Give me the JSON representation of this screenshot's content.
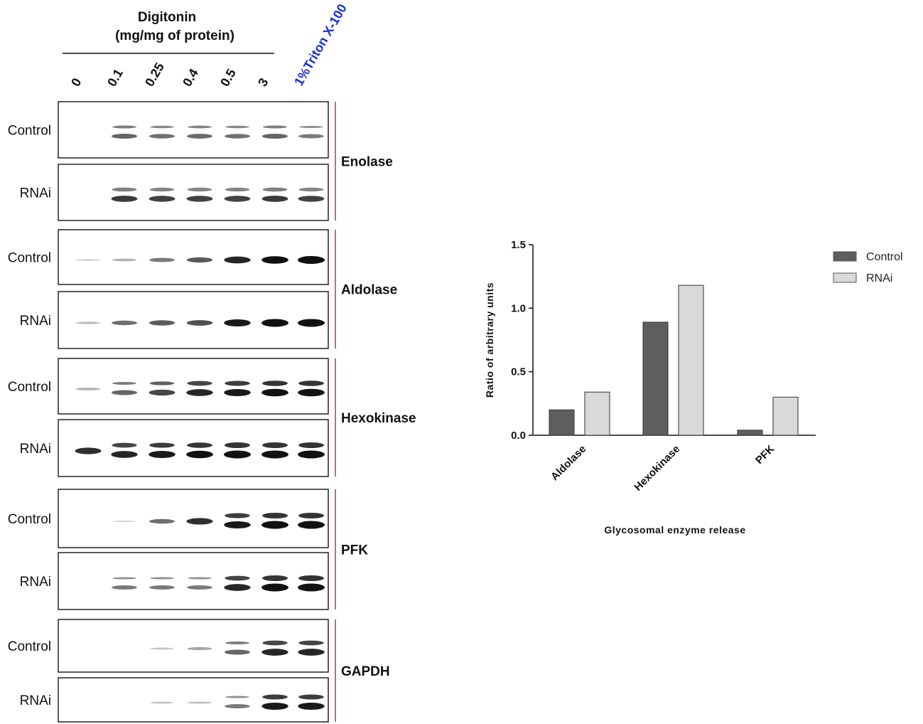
{
  "blot": {
    "header_line1": "Digitonin",
    "header_line2": "(mg/mg of protein)",
    "lanes": [
      "0",
      "0.1",
      "0.25",
      "0.4",
      "0.5",
      "3",
      "1%Triton X-100"
    ],
    "colors": {
      "triton_label": "#1a2fcf",
      "divider": "#c0392b",
      "band": "#111111"
    },
    "groups": [
      {
        "protein": "Enolase",
        "rows": [
          {
            "label": "Control",
            "intensity": [
              0,
              0.55,
              0.5,
              0.52,
              0.5,
              0.55,
              0.45
            ],
            "doublet": [
              0,
              1,
              1,
              1,
              1,
              1,
              1
            ]
          },
          {
            "label": "RNAi",
            "intensity": [
              0,
              0.75,
              0.72,
              0.72,
              0.72,
              0.75,
              0.72
            ],
            "doublet": [
              0,
              0.5,
              0.5,
              0.5,
              0.5,
              0.5,
              0.5
            ]
          }
        ]
      },
      {
        "protein": "Aldolase",
        "rows": [
          {
            "label": "Control",
            "intensity": [
              0.05,
              0.2,
              0.45,
              0.6,
              0.85,
              0.95,
              1.0
            ],
            "doublet": [
              0,
              0,
              0,
              0,
              0,
              0,
              0
            ]
          },
          {
            "label": "RNAi",
            "intensity": [
              0.15,
              0.5,
              0.6,
              0.65,
              0.9,
              1.0,
              1.0
            ],
            "doublet": [
              0,
              0,
              0,
              0,
              0,
              0,
              0
            ]
          }
        ]
      },
      {
        "protein": "Hexokinase",
        "rows": [
          {
            "label": "Control",
            "intensity": [
              0.2,
              0.55,
              0.7,
              0.85,
              0.9,
              0.95,
              0.95
            ],
            "doublet": [
              0,
              1,
              1,
              1,
              1,
              1,
              1
            ]
          },
          {
            "label": "RNAi",
            "intensity": [
              0.8,
              0.85,
              0.9,
              0.95,
              1.0,
              1.0,
              1.0
            ],
            "doublet": [
              0,
              1,
              1,
              1,
              1,
              1,
              1
            ]
          }
        ]
      },
      {
        "protein": "PFK",
        "rows": [
          {
            "label": "Control",
            "intensity": [
              0,
              0.02,
              0.5,
              0.8,
              0.9,
              1.0,
              1.0
            ],
            "doublet": [
              0,
              0,
              0,
              0,
              1,
              1,
              1
            ]
          },
          {
            "label": "RNAi",
            "intensity": [
              0,
              0.45,
              0.45,
              0.45,
              0.85,
              1.0,
              1.0
            ],
            "doublet": [
              0,
              1,
              1,
              1,
              1,
              1,
              1
            ]
          }
        ]
      },
      {
        "protein": "GAPDH",
        "rows": [
          {
            "label": "Control",
            "intensity": [
              0,
              0,
              0.1,
              0.25,
              0.55,
              0.85,
              0.85
            ],
            "doublet": [
              0,
              0,
              0,
              0,
              1,
              1,
              1
            ]
          },
          {
            "label": "RNAi",
            "intensity": [
              0,
              0,
              0.1,
              0.12,
              0.45,
              0.9,
              0.9
            ],
            "doublet": [
              0,
              0,
              0,
              0,
              1,
              1,
              1
            ]
          }
        ]
      }
    ]
  },
  "chart_data": {
    "type": "bar",
    "title": "",
    "categories": [
      "Aldolase",
      "Hexokinase",
      "PFK"
    ],
    "series": [
      {
        "name": "Control",
        "values": [
          0.2,
          0.89,
          0.04
        ],
        "color": "#5e5e5e"
      },
      {
        "name": "RNAi",
        "values": [
          0.34,
          1.18,
          0.3
        ],
        "color": "#d9d9d9"
      }
    ],
    "xlabel": "Glycosomal enzyme release",
    "ylabel": "Ratio of arbitrary units",
    "ylim": [
      0,
      1.5
    ],
    "yticks": [
      "0.0",
      "0.5",
      "1.0",
      "1.5"
    ],
    "grid": false,
    "legend_position": "top-right"
  }
}
